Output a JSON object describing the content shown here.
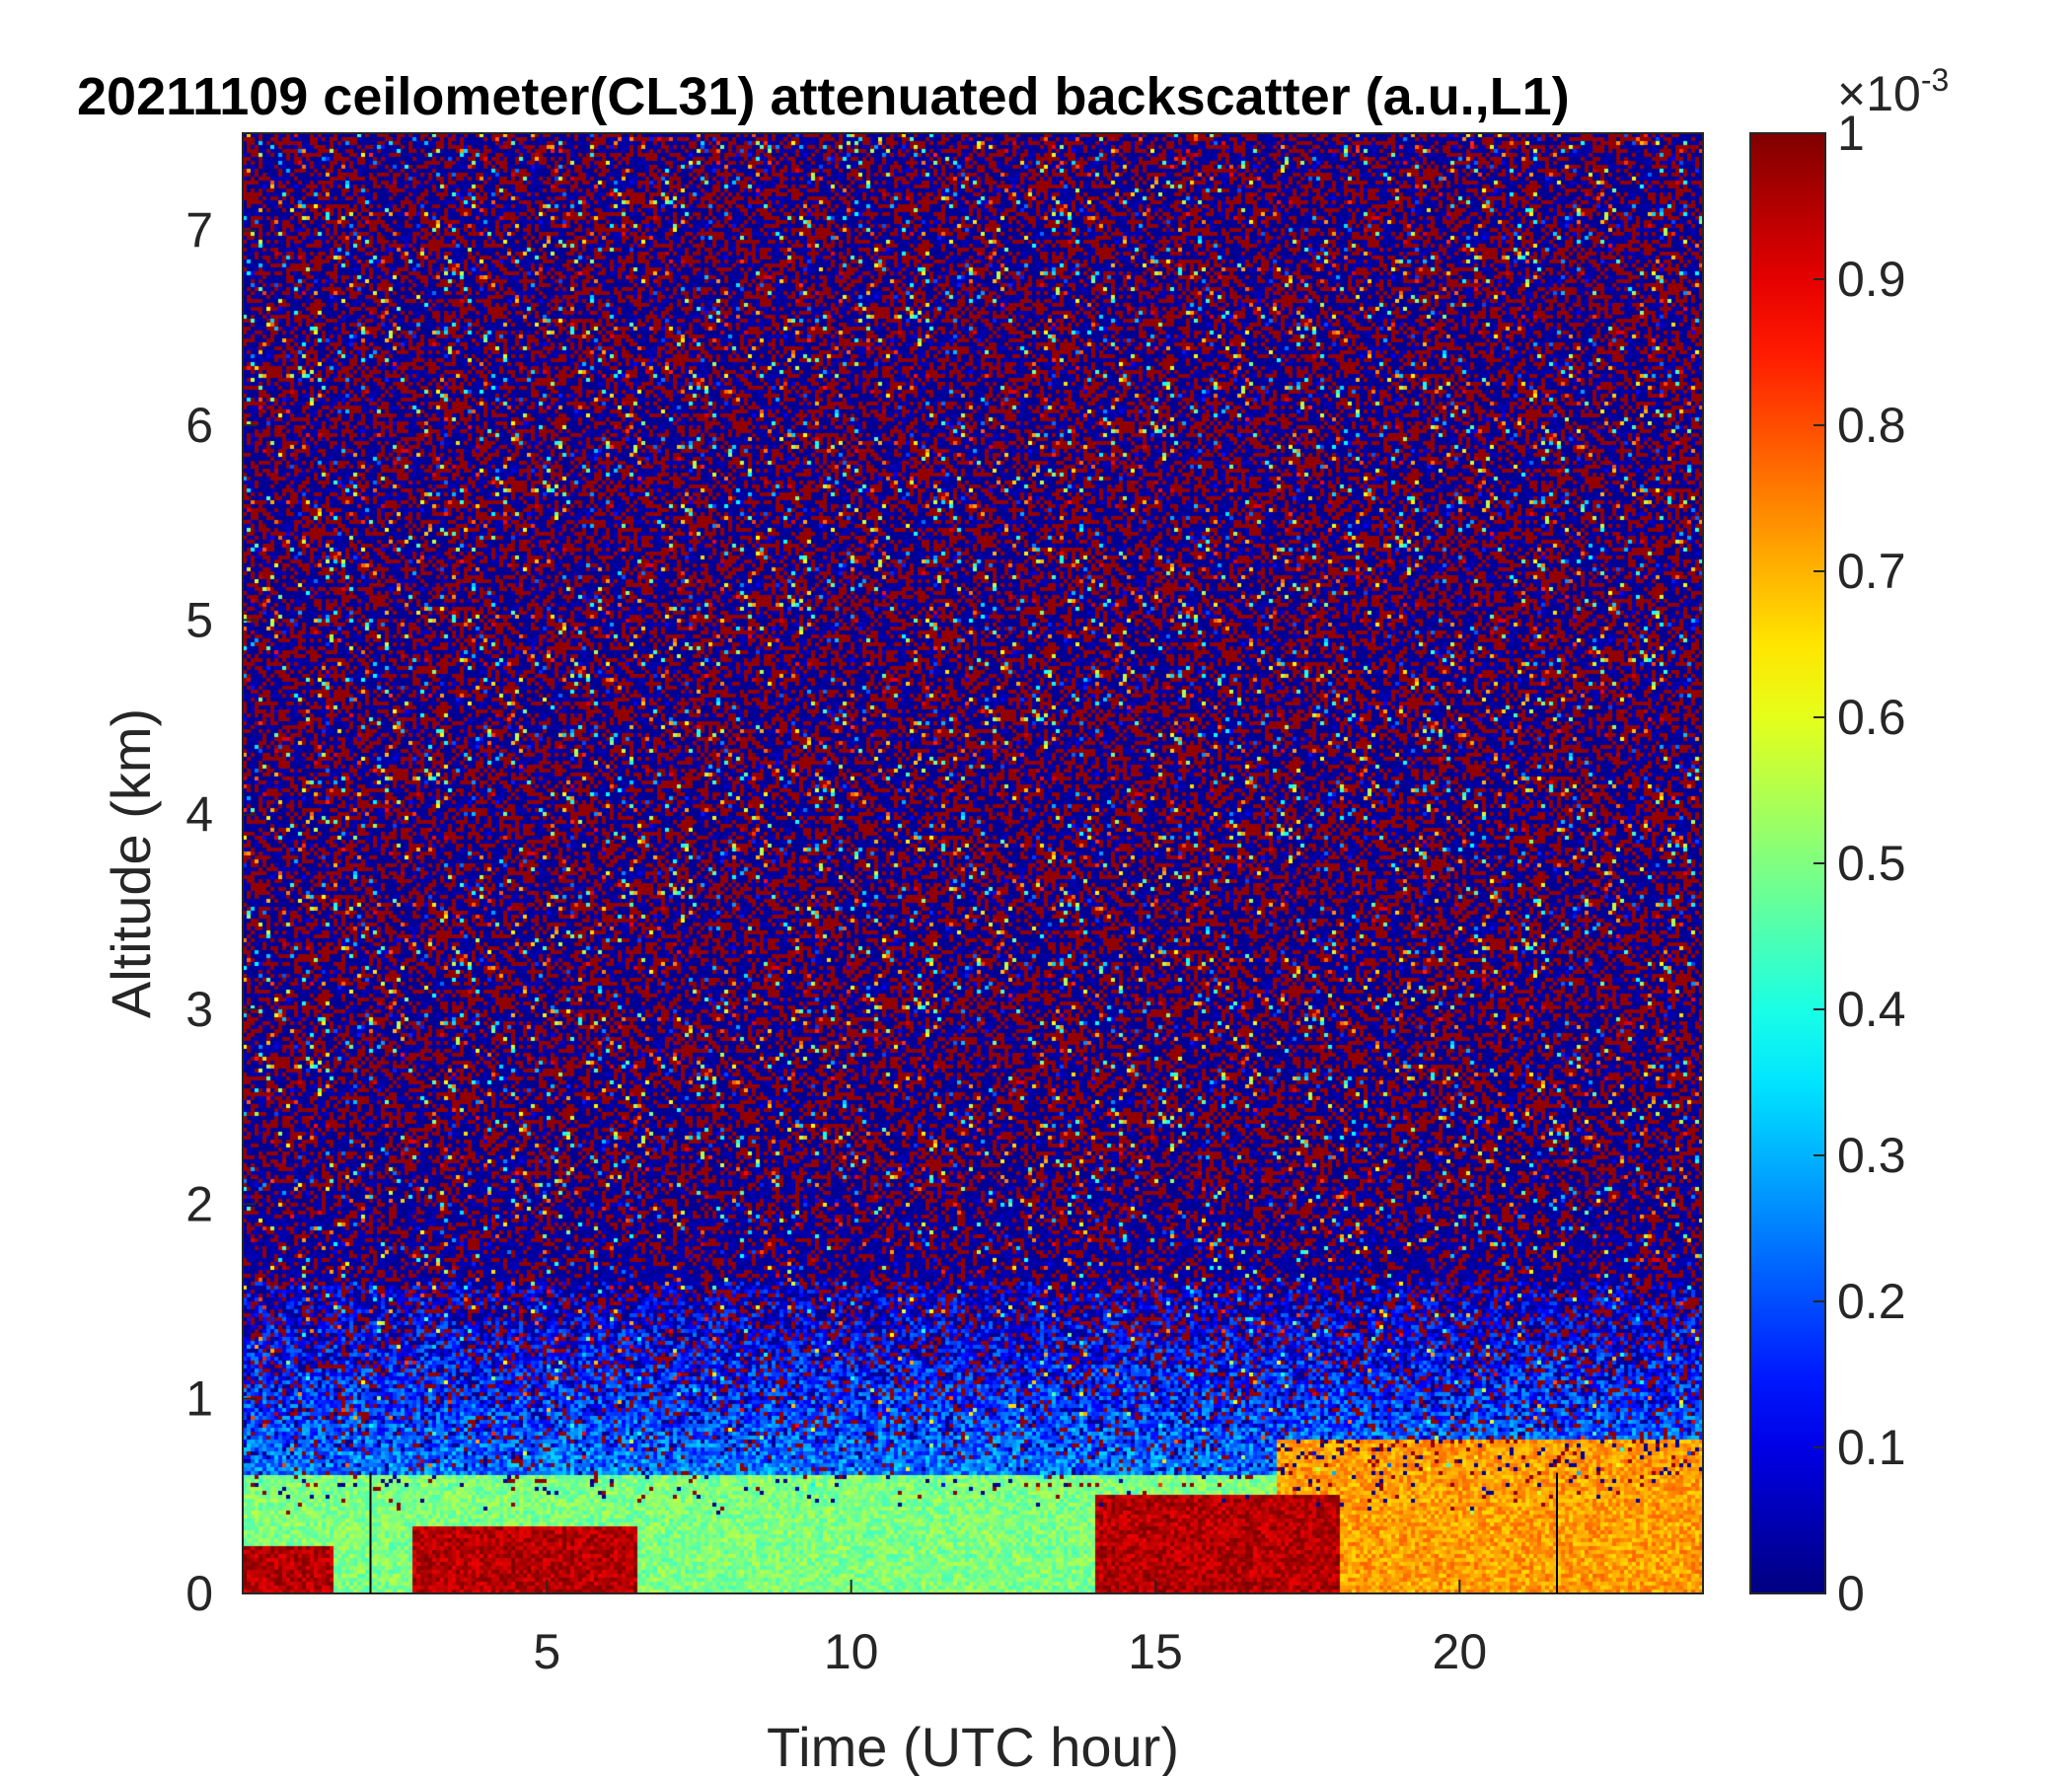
{
  "chart_data": {
    "type": "heatmap",
    "title": "20211109 ceilometer(CL31) attenuated backscatter (a.u.,L1)",
    "xlabel": "Time (UTC hour)",
    "ylabel": "Altitude (km)",
    "xlim": [
      0,
      24
    ],
    "ylim": [
      0,
      7.5
    ],
    "xticks": [
      5,
      10,
      15,
      20
    ],
    "yticks": [
      0,
      1,
      2,
      3,
      4,
      5,
      6,
      7
    ],
    "colorbar": {
      "colormap": "jet",
      "range": [
        0,
        0.001
      ],
      "scale_label": "×10",
      "scale_exponent": "-3",
      "ticks": [
        "0",
        "0.1",
        "0.2",
        "0.3",
        "0.4",
        "0.5",
        "0.6",
        "0.7",
        "0.8",
        "0.9",
        "1"
      ]
    },
    "features": [
      {
        "description": "elevated aerosol layer near ground",
        "x_range": [
          0,
          24
        ],
        "y_range": [
          0,
          0.6
        ],
        "value": 0.5
      },
      {
        "description": "strong backscatter patch",
        "x_range": [
          0,
          1.5
        ],
        "y_range": [
          0,
          0.25
        ],
        "value": 0.95
      },
      {
        "description": "strong backscatter patch",
        "x_range": [
          2.8,
          6.5
        ],
        "y_range": [
          0,
          0.35
        ],
        "value": 0.95
      },
      {
        "description": "strong backscatter region",
        "x_range": [
          14,
          18
        ],
        "y_range": [
          0,
          0.5
        ],
        "value": 0.95
      },
      {
        "description": "enhanced layer",
        "x_range": [
          17,
          24
        ],
        "y_range": [
          0,
          0.8
        ],
        "value": 0.72
      },
      {
        "description": "noise-dominated upper region",
        "x_range": [
          0,
          24
        ],
        "y_range": [
          1.5,
          7.5
        ],
        "value": "noise"
      }
    ],
    "vertical_lines_x": [
      2.1,
      21.6
    ],
    "grid": false
  }
}
